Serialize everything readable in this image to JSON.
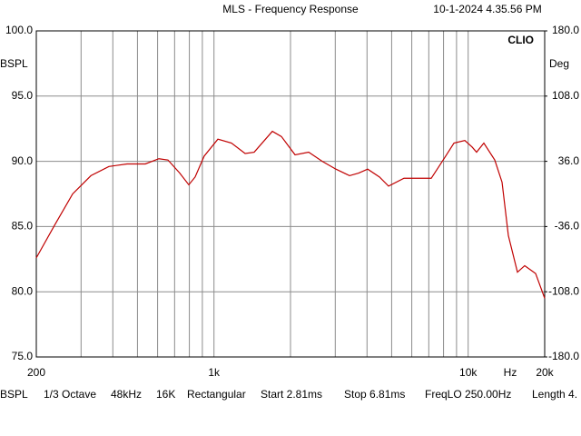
{
  "chart_data": {
    "type": "line",
    "title": "MLS - Frequency Response",
    "timestamp": "10-1-2024 4.35.56 PM",
    "brand": "CLIO",
    "y_label": "BSPL",
    "y2_label": "Deg",
    "x_label": "Hz",
    "log_x": true,
    "grid": true,
    "color": "#c00000",
    "x": [
      200,
      236,
      278,
      328,
      386,
      455,
      537,
      607,
      659,
      733,
      796,
      843,
      915,
      1036,
      1172,
      1326,
      1439,
      1697,
      1842,
      2084,
      2358,
      2667,
      3018,
      3414,
      3707,
      4024,
      4477,
      4862,
      5590,
      6325,
      7157,
      8094,
      8792,
      9702,
      10358,
      10791,
      11526,
      12724,
      13592,
      14394,
      15628,
      16689,
      18421,
      20000
    ],
    "values": [
      82.6,
      85.1,
      87.5,
      88.9,
      89.6,
      89.8,
      89.8,
      90.2,
      90.1,
      89.1,
      88.2,
      88.8,
      90.4,
      91.7,
      91.4,
      90.6,
      90.7,
      92.3,
      91.9,
      90.5,
      90.7,
      90.0,
      89.4,
      88.9,
      89.1,
      89.4,
      88.8,
      88.1,
      88.7,
      88.7,
      88.7,
      90.3,
      91.4,
      91.6,
      91.1,
      90.7,
      91.4,
      90.1,
      88.4,
      84.3,
      81.5,
      82.0,
      81.4,
      79.5
    ],
    "xlim": [
      200,
      20000
    ],
    "xticks": [
      {
        "value": 200,
        "label": "200"
      },
      {
        "value": 1000,
        "label": "1k"
      },
      {
        "value": 10000,
        "label": "10k"
      },
      {
        "value": 20000,
        "label": "20k"
      }
    ],
    "xminor": [
      300,
      400,
      500,
      600,
      700,
      800,
      900,
      2000,
      3000,
      4000,
      5000,
      6000,
      7000,
      8000,
      9000
    ],
    "ylim": [
      75,
      100
    ],
    "yticks": [
      {
        "value": 100,
        "label": "100.0"
      },
      {
        "value": 95,
        "label": "95.0"
      },
      {
        "value": 90,
        "label": "90.0"
      },
      {
        "value": 85,
        "label": "85.0"
      },
      {
        "value": 80,
        "label": "80.0"
      },
      {
        "value": 75,
        "label": "75.0"
      }
    ],
    "y2lim": [
      -180,
      180
    ],
    "y2ticks": [
      {
        "value": 180,
        "label": "180.0"
      },
      {
        "value": 108,
        "label": "108.0"
      },
      {
        "value": 36,
        "label": "36.0"
      },
      {
        "value": -36,
        "label": "-36.0"
      },
      {
        "value": -108,
        "label": "-108.0"
      },
      {
        "value": -180,
        "label": "-180.0"
      }
    ],
    "status_bar": [
      "BSPL",
      "1/3 Octave",
      "48kHz",
      "16K",
      "Rectangular",
      "Start 2.81ms",
      "Stop 6.81ms",
      "FreqLO 250.00Hz",
      "Length 4."
    ]
  }
}
